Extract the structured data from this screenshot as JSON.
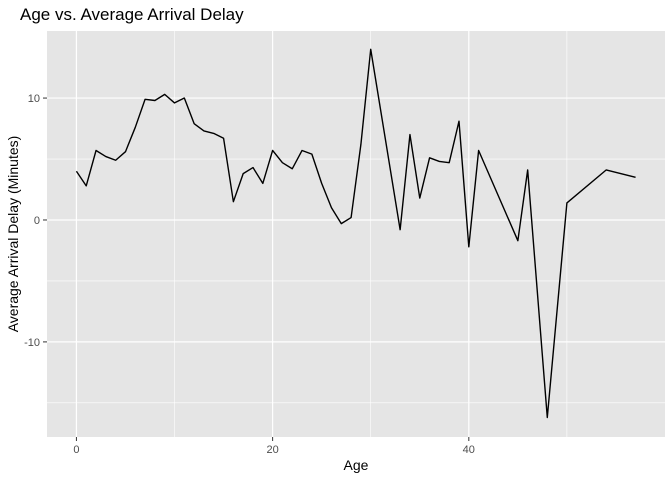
{
  "chart_data": {
    "type": "line",
    "title": "Age vs. Average Arrival Delay",
    "xlabel": "Age",
    "ylabel": "Average Arrival Delay (Minutes)",
    "xlim": [
      -3,
      60
    ],
    "ylim": [
      -17.8,
      15.5
    ],
    "x_ticks": [
      0,
      20,
      40
    ],
    "x_tick_labels": [
      "0",
      "20",
      "40"
    ],
    "x_minor_ticks": [
      10,
      30,
      50
    ],
    "y_ticks": [
      -10,
      0,
      10
    ],
    "y_tick_labels": [
      "-10",
      "0",
      "10"
    ],
    "y_minor_ticks": [
      -15,
      -5,
      5
    ],
    "grid": true,
    "legend": "none",
    "colors": {
      "panel": "#e5e5e5",
      "grid": "#ffffff",
      "line": "#000000",
      "tick": "#333333"
    },
    "series": [
      {
        "x": [
          0,
          1,
          2,
          3,
          4,
          5,
          6,
          7,
          8,
          9,
          10,
          11,
          12,
          13,
          14,
          15,
          16,
          17,
          18,
          19,
          20,
          21,
          22,
          23,
          24,
          25,
          26,
          27,
          28,
          29,
          30,
          33,
          34,
          35,
          36,
          37,
          38,
          39,
          40,
          41,
          45,
          46,
          48,
          50,
          54,
          57
        ],
        "y": [
          4.0,
          2.8,
          5.7,
          5.2,
          4.9,
          5.6,
          7.6,
          9.9,
          9.8,
          10.3,
          9.6,
          10.0,
          7.9,
          7.3,
          7.1,
          6.7,
          1.5,
          3.8,
          4.3,
          3.0,
          5.7,
          4.7,
          4.2,
          5.7,
          5.4,
          3.0,
          1.0,
          -0.3,
          0.2,
          6.2,
          14.0,
          -0.8,
          7.0,
          1.8,
          5.1,
          4.8,
          4.7,
          8.1,
          -2.2,
          5.7,
          -1.7,
          4.1,
          -16.2,
          1.4,
          4.1,
          3.5
        ]
      }
    ]
  }
}
